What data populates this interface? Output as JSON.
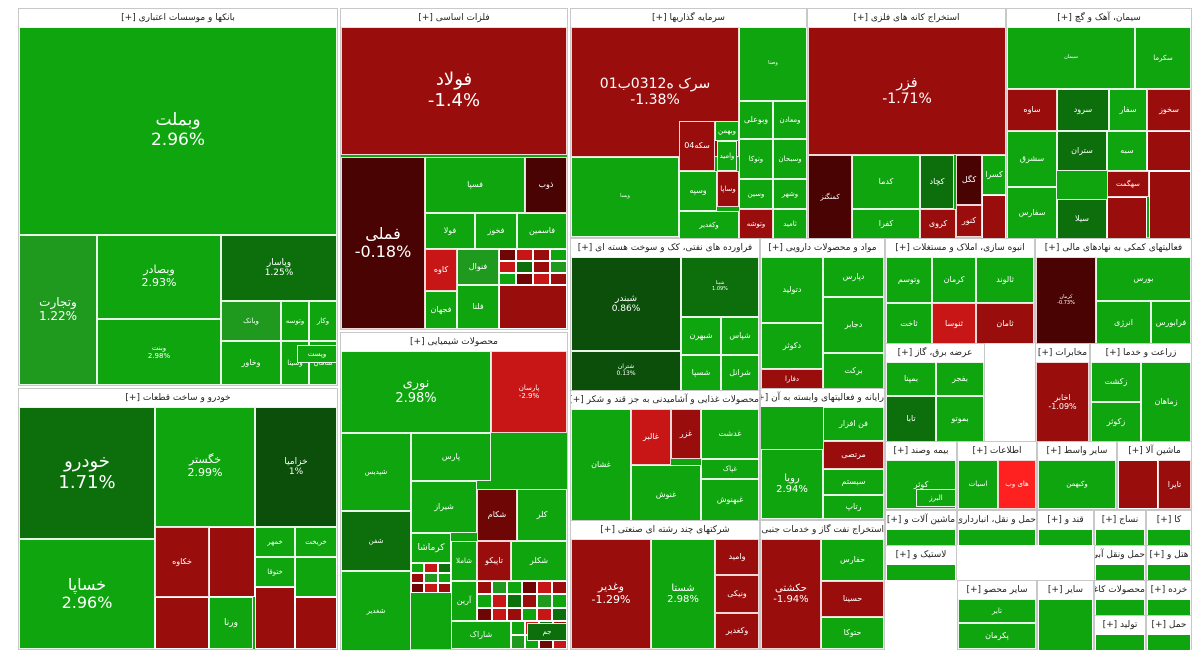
{
  "colors": {
    "pos_strong": "#0ea50e",
    "pos_mid": "#1f9a1f",
    "pos_dark": "#0c6f0c",
    "pos_darker": "#0b4f0b",
    "neg_strong": "#c81515",
    "neg_mid": "#9a0d0d",
    "neg_dark": "#6f0606",
    "neg_darker": "#4a0303",
    "neg_bright": "#ff2020"
  },
  "chart_data": {
    "type": "treemap",
    "unit": "daily % change",
    "sectors": [
      {
        "label": "بانکها و موسسات اعتباری [+]",
        "tiles": [
          {
            "name": "وبملت",
            "pct": "2.96%",
            "color": "pos_strong"
          },
          {
            "name": "وتجارت",
            "pct": "1.22%",
            "color": "pos_mid"
          },
          {
            "name": "وبصادر",
            "pct": "2.93%",
            "color": "pos_strong"
          },
          {
            "name": "وپاسار",
            "pct": "1.25%",
            "color": "pos_dark"
          },
          {
            "name": "وبنت",
            "pct": "2.98%",
            "color": "pos_strong"
          },
          {
            "name": "وبانک",
            "pct": "",
            "color": "pos_mid"
          },
          {
            "name": "وتوسه",
            "pct": "",
            "color": "pos_strong"
          },
          {
            "name": "وکار",
            "pct": "",
            "color": "pos_strong"
          },
          {
            "name": "وخاور",
            "pct": "",
            "color": "pos_strong"
          },
          {
            "name": "وسینا",
            "pct": "",
            "color": "pos_strong"
          },
          {
            "name": "سامان",
            "pct": "",
            "color": "pos_strong"
          },
          {
            "name": "وپست",
            "pct": "",
            "color": "pos_strong"
          }
        ]
      },
      {
        "label": "خودرو و ساخت قطعات [+]",
        "tiles": [
          {
            "name": "خودرو",
            "pct": "1.71%",
            "color": "pos_dark"
          },
          {
            "name": "خساپا",
            "pct": "2.96%",
            "color": "pos_strong"
          },
          {
            "name": "خگستر",
            "pct": "2.99%",
            "color": "pos_strong"
          },
          {
            "name": "خزامیا",
            "pct": "1%",
            "color": "pos_darker"
          },
          {
            "name": "خمهر",
            "pct": "",
            "color": "pos_strong"
          },
          {
            "name": "ختوقا",
            "pct": "",
            "color": "pos_strong"
          },
          {
            "name": "خکاوه",
            "pct": "",
            "color": "neg_mid"
          },
          {
            "name": "ورنا",
            "pct": "",
            "color": "pos_strong"
          },
          {
            "name": "خریخت",
            "pct": "",
            "color": "pos_strong"
          }
        ]
      },
      {
        "label": "فلزات اساسی [+]",
        "tiles": [
          {
            "name": "فولاد",
            "pct": "-1.4%",
            "color": "neg_mid"
          },
          {
            "name": "فملی",
            "pct": "-0.18%",
            "color": "neg_darker"
          },
          {
            "name": "فسپا",
            "pct": "",
            "color": "pos_strong"
          },
          {
            "name": "ذوب",
            "pct": "",
            "color": "neg_darker"
          },
          {
            "name": "فولا",
            "pct": "",
            "color": "pos_strong"
          },
          {
            "name": "فخوز",
            "pct": "",
            "color": "pos_strong"
          },
          {
            "name": "فاسمین",
            "pct": "",
            "color": "pos_strong"
          },
          {
            "name": "کاوه",
            "pct": "",
            "color": "neg_strong"
          },
          {
            "name": "فنوال",
            "pct": "",
            "color": "pos_mid"
          },
          {
            "name": "فلنا",
            "pct": "",
            "color": "pos_strong"
          },
          {
            "name": "فجهان",
            "pct": "",
            "color": "pos_strong"
          }
        ]
      },
      {
        "label": "محصولات شیمیایی [+]",
        "tiles": [
          {
            "name": "نوری",
            "pct": "2.98%",
            "color": "pos_strong"
          },
          {
            "name": "پارسان",
            "pct": "-2.9%",
            "color": "neg_strong"
          },
          {
            "name": "شپدیس",
            "pct": "",
            "color": "pos_strong"
          },
          {
            "name": "پارس",
            "pct": "",
            "color": "pos_strong"
          },
          {
            "name": "جم",
            "pct": "",
            "color": "pos_dark"
          },
          {
            "name": "شیراز",
            "pct": "",
            "color": "pos_strong"
          },
          {
            "name": "شکام",
            "pct": "",
            "color": "neg_dark"
          },
          {
            "name": "کلر",
            "pct": "",
            "color": "pos_strong"
          },
          {
            "name": "شفن",
            "pct": "",
            "color": "pos_dark"
          },
          {
            "name": "کرماشا",
            "pct": "",
            "color": "pos_strong"
          },
          {
            "name": "شاملا",
            "pct": "",
            "color": "pos_strong"
          },
          {
            "name": "تاپیکو",
            "pct": "",
            "color": "neg_mid"
          },
          {
            "name": "شکلر",
            "pct": "",
            "color": "pos_strong"
          },
          {
            "name": "آرین",
            "pct": "",
            "color": "pos_strong"
          },
          {
            "name": "شاراک",
            "pct": "",
            "color": "pos_strong"
          },
          {
            "name": "شغدیر",
            "pct": "",
            "color": "pos_strong"
          }
        ]
      },
      {
        "label": "سرمایه گذاریها [+]",
        "tiles": [
          {
            "name": "سرک ه0312ب01",
            "pct": "-1.38%",
            "color": "neg_mid"
          },
          {
            "name": "وصنا",
            "pct": "",
            "color": "pos_strong"
          },
          {
            "name": "وبوعلی",
            "pct": "",
            "color": "pos_strong"
          },
          {
            "name": "ومعادن",
            "pct": "",
            "color": "pos_strong"
          },
          {
            "name": "وسپه",
            "pct": "",
            "color": "pos_strong"
          },
          {
            "name": "سکه04",
            "pct": "",
            "color": "neg_mid"
          },
          {
            "name": "وامید",
            "pct": "",
            "color": "pos_strong"
          },
          {
            "name": "وپسا",
            "pct": "",
            "color": "pos_strong"
          },
          {
            "name": "وبهمن",
            "pct": "",
            "color": "pos_strong"
          },
          {
            "name": "وسبحان",
            "pct": "",
            "color": "pos_strong"
          },
          {
            "name": "وتوکا",
            "pct": "",
            "color": "pos_strong"
          },
          {
            "name": "وکغدیر",
            "pct": "",
            "color": "pos_strong"
          },
          {
            "name": "وساپا",
            "pct": "",
            "color": "neg_mid"
          },
          {
            "name": "وشهر",
            "pct": "",
            "color": "pos_strong"
          },
          {
            "name": "وسین",
            "pct": "",
            "color": "pos_strong"
          },
          {
            "name": "وتوشه",
            "pct": "",
            "color": "neg_mid"
          },
          {
            "name": "ثامید",
            "pct": "",
            "color": "pos_strong"
          }
        ]
      },
      {
        "label": "استخراج کانه های فلزی [+]",
        "tiles": [
          {
            "name": "فزر",
            "pct": "-1.71%",
            "color": "neg_mid"
          },
          {
            "name": "کچاد",
            "pct": "",
            "color": "pos_dark"
          },
          {
            "name": "کگل",
            "pct": "",
            "color": "neg_darker"
          },
          {
            "name": "کنور",
            "pct": "",
            "color": "neg_mid"
          },
          {
            "name": "کروی",
            "pct": "",
            "color": "neg_mid"
          },
          {
            "name": "کفرا",
            "pct": "",
            "color": "pos_strong"
          },
          {
            "name": "کدما",
            "pct": "",
            "color": "pos_strong"
          },
          {
            "name": "کسرا",
            "pct": "",
            "color": "pos_strong"
          },
          {
            "name": "کمنگنز",
            "pct": "",
            "color": "neg_darker"
          }
        ]
      },
      {
        "label": "سیمان، آهک و گچ [+]",
        "tiles": [
          {
            "name": "سیمان",
            "pct": "",
            "color": "pos_strong"
          },
          {
            "name": "سکرما",
            "pct": "",
            "color": "pos_strong"
          },
          {
            "name": "ساوه",
            "pct": "",
            "color": "neg_mid"
          },
          {
            "name": "سرود",
            "pct": "",
            "color": "pos_dark"
          },
          {
            "name": "سفار",
            "pct": "",
            "color": "pos_strong"
          },
          {
            "name": "سخوز",
            "pct": "",
            "color": "neg_mid"
          },
          {
            "name": "سشرق",
            "pct": "",
            "color": "pos_strong"
          },
          {
            "name": "ستران",
            "pct": "",
            "color": "pos_dark"
          },
          {
            "name": "سبه",
            "pct": "",
            "color": "pos_strong"
          },
          {
            "name": "سهگمت",
            "pct": "",
            "color": "neg_mid"
          },
          {
            "name": "سفارس",
            "pct": "",
            "color": "pos_strong"
          },
          {
            "name": "سیلا",
            "pct": "",
            "color": "pos_dark"
          }
        ]
      },
      {
        "label": "فراورده های نفتی، کک و سوخت هسته ای [+]",
        "tiles": [
          {
            "name": "شبندر",
            "pct": "0.86%",
            "color": "pos_darker"
          },
          {
            "name": "شپنا",
            "pct": "1.09%",
            "color": "pos_dark"
          },
          {
            "name": "شتران",
            "pct": "0.13%",
            "color": "pos_darker"
          },
          {
            "name": "شبهرن",
            "pct": "",
            "color": "pos_strong"
          },
          {
            "name": "شپاس",
            "pct": "",
            "color": "pos_strong"
          },
          {
            "name": "شسپا",
            "pct": "",
            "color": "pos_strong"
          },
          {
            "name": "شرانل",
            "pct": "",
            "color": "pos_strong"
          }
        ]
      },
      {
        "label": "مواد و محصولات دارویی [+]",
        "tiles": [
          {
            "name": "دتولید",
            "pct": "",
            "color": "pos_strong"
          },
          {
            "name": "دکوثر",
            "pct": "",
            "color": "pos_strong"
          },
          {
            "name": "دپارس",
            "pct": "",
            "color": "pos_strong"
          },
          {
            "name": "برکت",
            "pct": "",
            "color": "pos_strong"
          },
          {
            "name": "دجابر",
            "pct": "",
            "color": "pos_strong"
          },
          {
            "name": "دفارا",
            "pct": "",
            "color": "neg_mid"
          }
        ]
      },
      {
        "label": "محصولات غذایی و آشامیدنی به جز قند و شکر [+]",
        "tiles": [
          {
            "name": "غالبر",
            "pct": "",
            "color": "neg_strong"
          },
          {
            "name": "غزر",
            "pct": "",
            "color": "neg_mid"
          },
          {
            "name": "غنوش",
            "pct": "",
            "color": "pos_strong"
          },
          {
            "name": "غدشت",
            "pct": "",
            "color": "pos_strong"
          },
          {
            "name": "غشان",
            "pct": "",
            "color": "pos_strong"
          },
          {
            "name": "غپاک",
            "pct": "",
            "color": "pos_strong"
          },
          {
            "name": "غبهنوش",
            "pct": "",
            "color": "pos_strong"
          }
        ]
      },
      {
        "label": "شرکتهای چند رشته ای صنعتی [+]",
        "tiles": [
          {
            "name": "وغدیر",
            "pct": "-1.29%",
            "color": "neg_mid"
          },
          {
            "name": "شستا",
            "pct": "2.98%",
            "color": "pos_strong"
          },
          {
            "name": "وامید",
            "pct": "",
            "color": "neg_mid"
          },
          {
            "name": "ونیکی",
            "pct": "",
            "color": "neg_mid"
          },
          {
            "name": "وکغدیر",
            "pct": "",
            "color": "neg_mid"
          }
        ]
      },
      {
        "label": "رایانه و فعالیتهای وابسته به آن [+]",
        "tiles": [
          {
            "name": "رویا",
            "pct": "2.94%",
            "color": "pos_strong"
          },
          {
            "name": "فن افزار",
            "pct": "",
            "color": "pos_strong"
          },
          {
            "name": "مرتصی",
            "pct": "",
            "color": "neg_mid"
          },
          {
            "name": "سیستم",
            "pct": "",
            "color": "pos_strong"
          },
          {
            "name": "رتاپ",
            "pct": "",
            "color": "pos_strong"
          }
        ]
      },
      {
        "label": "استخراج نفت گاز و خدمات جنبی جز اکتشاف [+]",
        "tiles": [
          {
            "name": "حکشتی",
            "pct": "-1.94%",
            "color": "neg_mid"
          },
          {
            "name": "حفارس",
            "pct": "",
            "color": "pos_strong"
          },
          {
            "name": "حسینا",
            "pct": "",
            "color": "neg_mid"
          },
          {
            "name": "حتوکا",
            "pct": "",
            "color": "pos_strong"
          }
        ]
      },
      {
        "label": "انبوه سازی، املاک و مستغلات [+]",
        "tiles": [
          {
            "name": "وتوسم",
            "pct": "",
            "color": "pos_strong"
          },
          {
            "name": "ثاخت",
            "pct": "",
            "color": "pos_strong"
          },
          {
            "name": "ثنوسا",
            "pct": "",
            "color": "neg_strong"
          },
          {
            "name": "ثالوند",
            "pct": "",
            "color": "pos_strong"
          },
          {
            "name": "ثامان",
            "pct": "",
            "color": "neg_mid"
          },
          {
            "name": "کرمان",
            "pct": "",
            "color": "pos_strong"
          }
        ]
      },
      {
        "label": "فعالیتهای کمکی به نهادهای مالی [+]",
        "tiles": [
          {
            "name": "بورس",
            "pct": "",
            "color": "pos_strong"
          },
          {
            "name": "فرابورس",
            "pct": "",
            "color": "pos_strong"
          },
          {
            "name": "انرژی",
            "pct": "",
            "color": "pos_strong"
          },
          {
            "name": "کرمان",
            "pct": "-0.73%",
            "color": "neg_darker"
          }
        ]
      },
      {
        "label": "عرضه برق، گاز [+]",
        "tiles": [
          {
            "name": "بمپنا",
            "pct": "",
            "color": "pos_strong"
          },
          {
            "name": "بفجر",
            "pct": "",
            "color": "pos_strong"
          },
          {
            "name": "تابا",
            "pct": "",
            "color": "pos_dark"
          },
          {
            "name": "بموتو",
            "pct": "",
            "color": "pos_strong"
          }
        ]
      },
      {
        "label": "مخابرات [+]",
        "tiles": [
          {
            "name": "اخابر",
            "pct": "-1.09%",
            "color": "neg_mid"
          }
        ]
      },
      {
        "label": "زراعت و خدما [+]",
        "tiles": [
          {
            "name": "زکشت",
            "pct": "",
            "color": "pos_strong"
          },
          {
            "name": "زکوثر",
            "pct": "",
            "color": "pos_strong"
          },
          {
            "name": "زماهان",
            "pct": "",
            "color": "pos_strong"
          }
        ]
      },
      {
        "label": "بیمه وصند [+]",
        "tiles": [
          {
            "name": "کوثر",
            "pct": "",
            "color": "pos_strong"
          },
          {
            "name": "البرز",
            "pct": "",
            "color": "pos_strong"
          }
        ]
      },
      {
        "label": "اطلاعات [+]",
        "tiles": [
          {
            "name": "اسیات",
            "pct": "",
            "color": "pos_strong"
          },
          {
            "name": "های وب",
            "pct": "",
            "color": "neg_bright"
          }
        ]
      },
      {
        "label": "سایر واسط [+]",
        "tiles": [
          {
            "name": "وکبهمن",
            "pct": "",
            "color": "pos_strong"
          }
        ]
      },
      {
        "label": "ماشین آلا [+]",
        "tiles": [
          {
            "name": "تایرا",
            "pct": "",
            "color": "neg_mid"
          }
        ]
      },
      {
        "label": "ماشین آلات و [+]",
        "tiles": []
      },
      {
        "label": "قند و [+]",
        "tiles": []
      },
      {
        "label": "نساج [+]",
        "tiles": []
      },
      {
        "label": "کا [+]",
        "tiles": []
      },
      {
        "label": "لاستیک و [+]",
        "tiles": []
      },
      {
        "label": "سایر محصو [+]",
        "tiles": [
          {
            "name": "تایر",
            "pct": "",
            "color": "pos_strong"
          },
          {
            "name": "پکرمان",
            "pct": "",
            "color": "pos_strong"
          }
        ]
      },
      {
        "label": "حمل و نقل، انبارداری و [+]",
        "tiles": []
      },
      {
        "label": "حمل ونقل آبی [+]",
        "tiles": []
      },
      {
        "label": "سایر [+]",
        "tiles": []
      },
      {
        "label": "محصولات کاغذی [+]",
        "tiles": []
      },
      {
        "label": "هتل و [+]",
        "tiles": []
      },
      {
        "label": "خرده [+]",
        "tiles": []
      },
      {
        "label": "تولید [+]",
        "tiles": []
      },
      {
        "label": "حمل [+]",
        "tiles": []
      }
    ]
  }
}
